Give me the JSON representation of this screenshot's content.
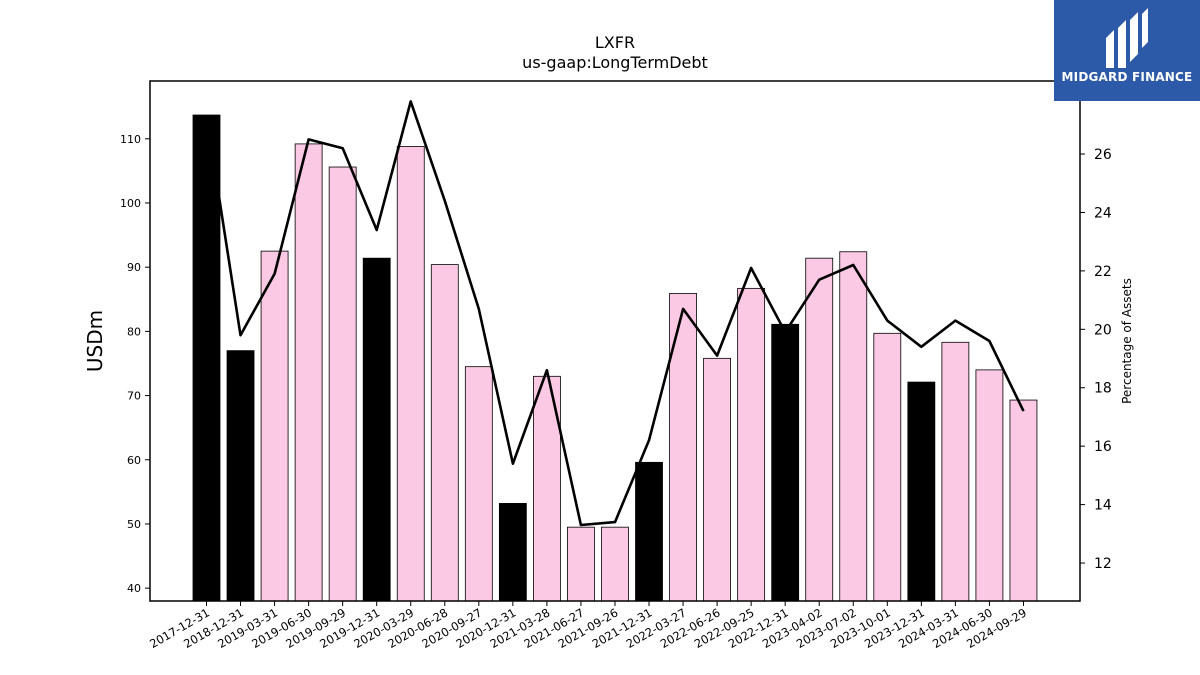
{
  "brand": {
    "name": "MIDGARD FINANCE",
    "bg_color": "#2c5aa8"
  },
  "chart_data": {
    "type": "bar",
    "title": "LXFR",
    "subtitle": "us-gaap:LongTermDebt",
    "ylabel": "USDm",
    "y2label": "Percentage of Assets",
    "ylim": [
      38,
      119
    ],
    "y2lim": [
      10.7,
      28.5
    ],
    "yticks": [
      40,
      50,
      60,
      70,
      80,
      90,
      100,
      110
    ],
    "y2ticks": [
      12,
      14,
      16,
      18,
      20,
      22,
      24,
      26
    ],
    "categories": [
      "2017-12-31",
      "2018-12-31",
      "2019-03-31",
      "2019-06-30",
      "2019-09-29",
      "2019-12-31",
      "2020-03-29",
      "2020-06-28",
      "2020-09-27",
      "2020-12-31",
      "2021-03-28",
      "2021-06-27",
      "2021-09-26",
      "2021-12-31",
      "2022-03-27",
      "2022-06-26",
      "2022-09-25",
      "2022-12-31",
      "2023-04-02",
      "2023-07-02",
      "2023-10-01",
      "2023-12-31",
      "2024-03-31",
      "2024-06-30",
      "2024-09-29"
    ],
    "series": [
      {
        "type": "bar",
        "axis": "left",
        "values": [
          113.7,
          77.0,
          92.5,
          109.2,
          105.6,
          91.4,
          108.8,
          90.4,
          74.5,
          53.2,
          73.0,
          49.5,
          49.5,
          59.6,
          85.9,
          75.8,
          86.7,
          81.1,
          91.4,
          92.4,
          79.7,
          72.1,
          78.3,
          74.0,
          69.3
        ],
        "annual_flags": [
          true,
          true,
          false,
          false,
          false,
          true,
          false,
          false,
          false,
          true,
          false,
          false,
          false,
          true,
          false,
          false,
          false,
          true,
          false,
          false,
          false,
          true,
          false,
          false,
          false
        ]
      },
      {
        "type": "line",
        "axis": "right",
        "values": [
          27.3,
          19.8,
          21.9,
          26.5,
          26.2,
          23.4,
          27.8,
          24.4,
          20.7,
          15.4,
          18.6,
          13.3,
          13.4,
          16.2,
          20.7,
          19.1,
          22.1,
          19.9,
          21.7,
          22.2,
          20.3,
          19.4,
          20.3,
          19.6,
          17.2
        ]
      }
    ],
    "colors": {
      "annual_bar": "#000000",
      "quarter_bar": "#fbc9e3",
      "line": "#000000"
    },
    "grid": false
  }
}
